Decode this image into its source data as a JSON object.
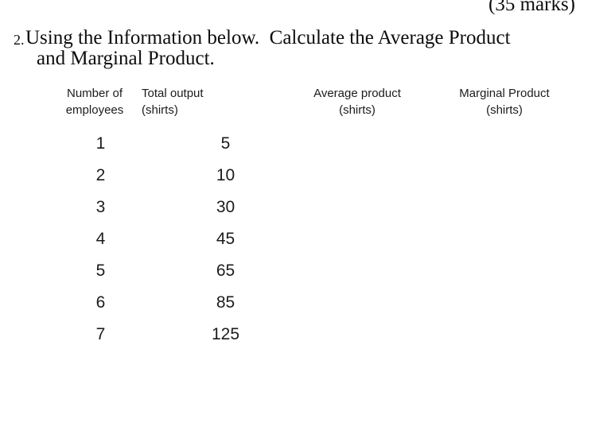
{
  "header": {
    "marks": "(35 marks)"
  },
  "question": {
    "number": "2.",
    "text": "Using the Information below.  Calculate the Average Product\nand Marginal Product."
  },
  "table": {
    "columns": [
      {
        "label": "Number of\nemployees"
      },
      {
        "label": "Total output\n(shirts)"
      },
      {
        "label": "Average product\n(shirts)"
      },
      {
        "label": "Marginal Product\n(shirts)"
      }
    ],
    "rows": [
      {
        "employees": "1",
        "total_output": "5",
        "average_product": "",
        "marginal_product": ""
      },
      {
        "employees": "2",
        "total_output": "10",
        "average_product": "",
        "marginal_product": ""
      },
      {
        "employees": "3",
        "total_output": "30",
        "average_product": "",
        "marginal_product": ""
      },
      {
        "employees": "4",
        "total_output": "45",
        "average_product": "",
        "marginal_product": ""
      },
      {
        "employees": "5",
        "total_output": "65",
        "average_product": "",
        "marginal_product": ""
      },
      {
        "employees": "6",
        "total_output": "85",
        "average_product": "",
        "marginal_product": ""
      },
      {
        "employees": "7",
        "total_output": "125",
        "average_product": "",
        "marginal_product": ""
      }
    ]
  }
}
